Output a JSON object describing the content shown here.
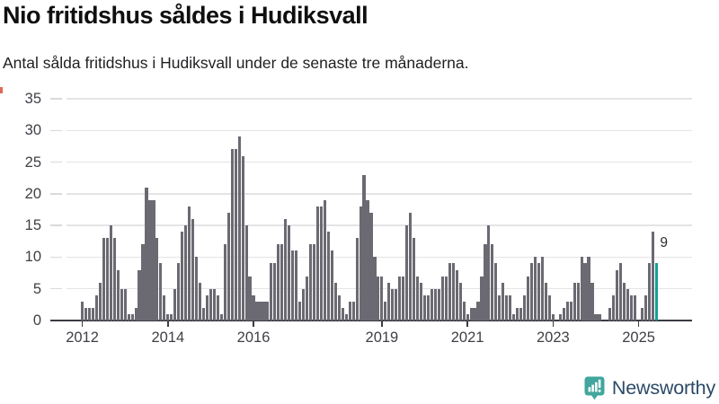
{
  "title": "Nio fritidshus såldes i Hudiksvall",
  "subtitle": "Antal sålda fritidshus i Hudiksvall under de senaste tre månaderna.",
  "annotation": {
    "label": "9"
  },
  "branding": {
    "name": "Newsworthy",
    "icon": "newsworthy-bubble-chart-icon"
  },
  "colors": {
    "bar": "#6b6a72",
    "highlight": "#14a098",
    "grid": "#e4e4e8",
    "axis": "#3c3c43",
    "tick_stub": "#d9d9de",
    "axis_text": "#3f3f46",
    "title_text": "#0f0f10",
    "logo_icon": "#41a69d",
    "logo_text": "#2c4a66"
  },
  "chart_data": {
    "type": "bar",
    "title": "Nio fritidshus såldes i Hudiksvall",
    "subtitle": "Antal sålda fritidshus i Hudiksvall under de senaste tre månaderna.",
    "xlabel": "",
    "ylabel": "",
    "frequency": "monthly",
    "x_start": "2012-01",
    "x_end": "2025-06",
    "ylim": [
      0,
      35
    ],
    "yticks": [
      0,
      5,
      10,
      15,
      20,
      25,
      30,
      35
    ],
    "grid": true,
    "legend": false,
    "values": [
      3,
      2,
      2,
      2,
      4,
      6,
      13,
      13,
      15,
      13,
      8,
      5,
      5,
      1,
      1,
      2,
      8,
      12,
      21,
      19,
      19,
      13,
      9,
      4,
      1,
      1,
      5,
      9,
      14,
      15,
      18,
      16,
      10,
      6,
      2,
      4,
      5,
      5,
      4,
      1,
      12,
      17,
      27,
      27,
      29,
      26,
      15,
      7,
      4,
      3,
      3,
      3,
      3,
      9,
      9,
      12,
      12,
      16,
      15,
      11,
      11,
      3,
      5,
      7,
      12,
      12,
      18,
      18,
      19,
      14,
      11,
      6,
      4,
      2,
      1,
      3,
      3,
      13,
      18,
      23,
      19,
      17,
      10,
      7,
      7,
      3,
      6,
      5,
      5,
      7,
      7,
      15,
      17,
      13,
      7,
      6,
      4,
      4,
      5,
      5,
      5,
      7,
      7,
      9,
      9,
      8,
      6,
      3,
      1,
      2,
      2,
      3,
      7,
      12,
      15,
      12,
      9,
      4,
      6,
      4,
      4,
      1,
      2,
      2,
      4,
      7,
      9,
      10,
      9,
      10,
      6,
      4,
      1,
      0,
      1,
      2,
      3,
      3,
      6,
      6,
      10,
      9,
      10,
      6,
      1,
      1,
      0,
      0,
      2,
      4,
      8,
      9,
      6,
      5,
      4,
      4,
      0,
      2,
      4,
      9,
      14,
      9
    ],
    "highlight_index": 161,
    "highlight_value": 9,
    "xticks": [
      {
        "label": "2012",
        "month_index": 0
      },
      {
        "label": "2014",
        "month_index": 24
      },
      {
        "label": "2016",
        "month_index": 48
      },
      {
        "label": "2019",
        "month_index": 84
      },
      {
        "label": "2021",
        "month_index": 108
      },
      {
        "label": "2023",
        "month_index": 132
      },
      {
        "label": "2025",
        "month_index": 156
      }
    ]
  }
}
